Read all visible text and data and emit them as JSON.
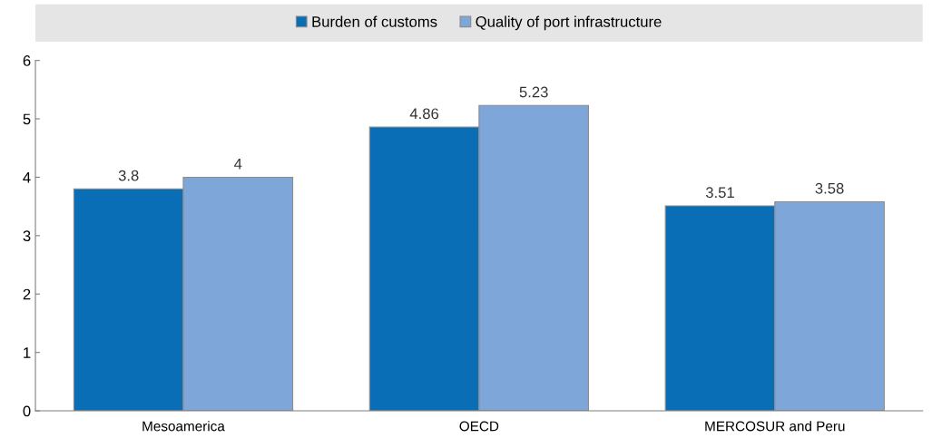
{
  "chart_data": {
    "type": "bar",
    "categories": [
      "Mesoamerica",
      "OECD",
      "MERCOSUR and Peru"
    ],
    "series": [
      {
        "name": "Burden of customs",
        "color": "#0a6eb7",
        "values": [
          3.8,
          4.86,
          3.51
        ]
      },
      {
        "name": "Quality of port infrastructure",
        "color": "#7fa6d9",
        "values": [
          4,
          5.23,
          3.58
        ]
      }
    ],
    "ylim": [
      0,
      6
    ],
    "yticks": [
      0,
      1,
      2,
      3,
      4,
      5,
      6
    ],
    "grid": false,
    "legend": "top",
    "data_labels": true
  }
}
